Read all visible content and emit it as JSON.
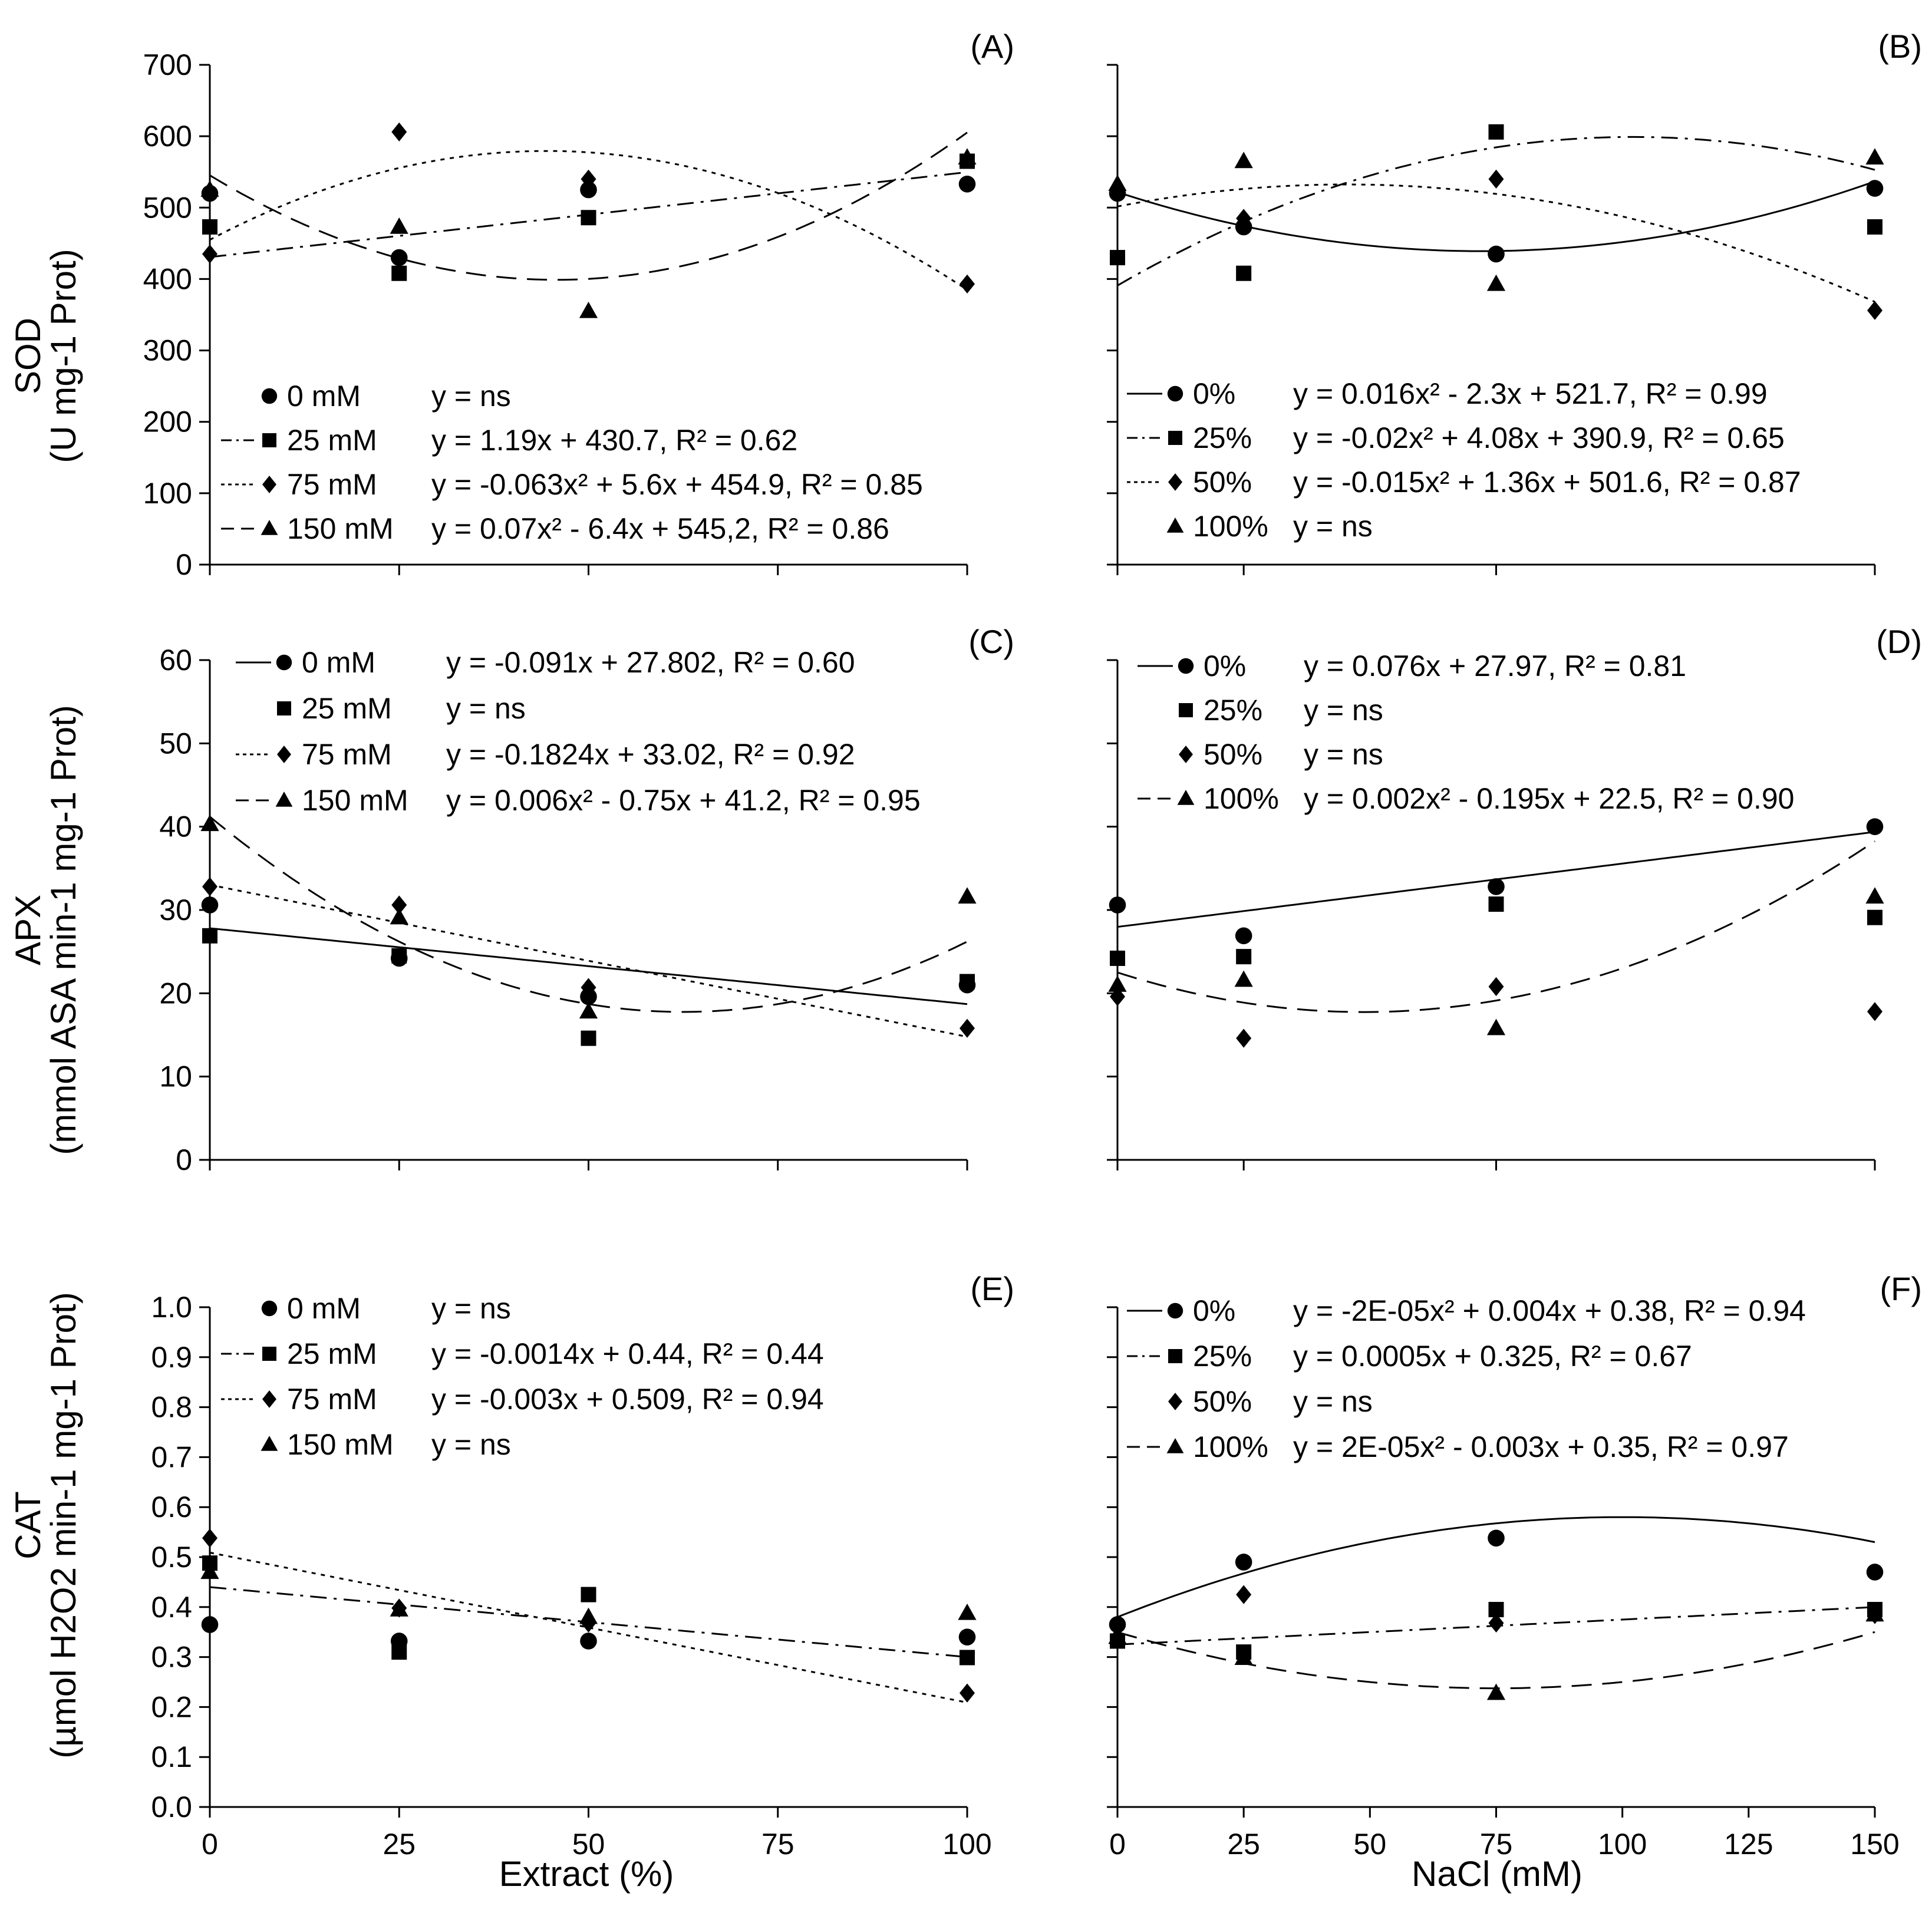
{
  "figure": {
    "xlabel_left": "Extract (%)",
    "xlabel_right": "NaCl (mM)",
    "ylabels": [
      {
        "main": "SOD",
        "sub": "(U mg-1 Prot)"
      },
      {
        "main": "APX",
        "sub": "(mmol ASA  min-1 mg-1 Prot)"
      },
      {
        "main": "CAT",
        "sub": "(µmol H2O2  min-1 mg-1 Prot)"
      }
    ]
  },
  "chart_data": [
    {
      "id": "A",
      "title": "(A)",
      "type": "scatter",
      "xlim": [
        0,
        100
      ],
      "xticks": [
        0,
        25,
        50,
        75,
        100
      ],
      "xlabels": [
        "0",
        "25",
        "50",
        "75",
        "100"
      ],
      "ylim": [
        0,
        700
      ],
      "yticks": [
        0,
        100,
        200,
        300,
        400,
        500,
        600,
        700
      ],
      "ylabels": [
        "0",
        "100",
        "200",
        "300",
        "400",
        "500",
        "600",
        "700"
      ],
      "show_xlabels": false,
      "show_ylabels": true,
      "series": [
        {
          "name": "0 mM",
          "marker": "circle",
          "x": [
            0,
            25,
            50,
            100
          ],
          "y": [
            520,
            430,
            525,
            533
          ],
          "fit": null,
          "legend": {
            "label": "0 mM",
            "eq": "y = ns"
          }
        },
        {
          "name": "25 mM",
          "marker": "square",
          "x": [
            0,
            25,
            50,
            100
          ],
          "y": [
            473,
            408,
            486,
            565
          ],
          "fit": {
            "coef": [
              430.7,
              1.19
            ],
            "dash": "dashdot"
          },
          "legend": {
            "label": "25 mM",
            "eq": "y = 1.19x + 430.7, R² = 0.62"
          }
        },
        {
          "name": "75 mM",
          "marker": "diamond",
          "x": [
            0,
            25,
            50,
            100
          ],
          "y": [
            435,
            606,
            540,
            393
          ],
          "fit": {
            "coef": [
              454.9,
              5.6,
              -0.063
            ],
            "dash": "dot"
          },
          "legend": {
            "label": "75 mM",
            "eq": "y = -0.063x² + 5.6x + 454.9, R² = 0.85"
          }
        },
        {
          "name": "150 mM",
          "marker": "triangle",
          "x": [
            0,
            25,
            50,
            100
          ],
          "y": [
            525,
            473,
            355,
            570
          ],
          "fit": {
            "coef": [
              545.2,
              -6.4,
              0.07
            ],
            "dash": "dash"
          },
          "legend": {
            "label": "150 mM",
            "eq": "y = 0.07x² - 6.4x + 545,2, R² = 0.86"
          }
        }
      ]
    },
    {
      "id": "B",
      "title": "(B)",
      "type": "scatter",
      "xlim": [
        0,
        150
      ],
      "xticks": [
        0,
        25,
        75,
        150
      ],
      "xlabels": [
        "0",
        "25",
        "75",
        "150"
      ],
      "ylim": [
        0,
        700
      ],
      "yticks": [
        0,
        100,
        200,
        300,
        400,
        500,
        600,
        700
      ],
      "ylabels": [],
      "show_xlabels": false,
      "show_ylabels": false,
      "series": [
        {
          "name": "0%",
          "marker": "circle",
          "x": [
            0,
            25,
            75,
            150
          ],
          "y": [
            520,
            473,
            435,
            527
          ],
          "fit": {
            "coef": [
              521.7,
              -2.3,
              0.016
            ],
            "dash": "solid"
          },
          "legend": {
            "label": "0%",
            "eq": "y = 0.016x² - 2.3x + 521.7, R² = 0.99"
          }
        },
        {
          "name": "25%",
          "marker": "square",
          "x": [
            0,
            25,
            75,
            150
          ],
          "y": [
            430,
            408,
            606,
            473
          ],
          "fit": {
            "coef": [
              390.9,
              4.08,
              -0.02
            ],
            "dash": "dashdot"
          },
          "legend": {
            "label": "25%",
            "eq": "y = -0.02x² + 4.08x + 390.9, R² = 0.65"
          }
        },
        {
          "name": "50%",
          "marker": "diamond",
          "x": [
            0,
            25,
            75,
            150
          ],
          "y": [
            525,
            485,
            540,
            356
          ],
          "fit": {
            "coef": [
              501.6,
              1.36,
              -0.015
            ],
            "dash": "dot"
          },
          "legend": {
            "label": "50%",
            "eq": "y = -0.015x² + 1.36x + 501.6, R² = 0.87"
          }
        },
        {
          "name": "100%",
          "marker": "triangle",
          "x": [
            0,
            25,
            75,
            150
          ],
          "y": [
            533,
            565,
            393,
            570
          ],
          "fit": null,
          "legend": {
            "label": "100%",
            "eq": "y = ns"
          }
        }
      ]
    },
    {
      "id": "C",
      "title": "(C)",
      "type": "scatter",
      "xlim": [
        0,
        100
      ],
      "xticks": [
        0,
        25,
        50,
        75,
        100
      ],
      "xlabels": [
        "0",
        "25",
        "50",
        "75",
        "100"
      ],
      "ylim": [
        0,
        60
      ],
      "yticks": [
        0,
        10,
        20,
        30,
        40,
        50,
        60
      ],
      "ylabels": [
        "0",
        "10",
        "20",
        "30",
        "40",
        "50",
        "60"
      ],
      "show_xlabels": false,
      "show_ylabels": true,
      "series": [
        {
          "name": "0 mM",
          "marker": "circle",
          "x": [
            0,
            25,
            50,
            100
          ],
          "y": [
            30.6,
            24.2,
            19.6,
            21.0
          ],
          "fit": {
            "coef": [
              27.802,
              -0.091
            ],
            "dash": "solid"
          },
          "legend": {
            "label": "0 mM",
            "eq": "y = -0.091x + 27.802, R² = 0.60"
          }
        },
        {
          "name": "25 mM",
          "marker": "square",
          "x": [
            0,
            25,
            50,
            100
          ],
          "y": [
            26.9,
            24.5,
            14.6,
            21.4
          ],
          "fit": null,
          "legend": {
            "label": "25 mM",
            "eq": "y = ns"
          }
        },
        {
          "name": "75 mM",
          "marker": "diamond",
          "x": [
            0,
            25,
            50,
            100
          ],
          "y": [
            32.8,
            30.6,
            20.7,
            15.8
          ],
          "fit": {
            "coef": [
              33.02,
              -0.1824
            ],
            "dash": "dot"
          },
          "legend": {
            "label": "75 mM",
            "eq": "y = -0.1824x + 33.02, R² = 0.92"
          }
        },
        {
          "name": "150 mM",
          "marker": "triangle",
          "x": [
            0,
            25,
            50,
            100
          ],
          "y": [
            40.3,
            29.1,
            17.8,
            31.6
          ],
          "fit": {
            "coef": [
              41.2,
              -0.75,
              0.006
            ],
            "dash": "dash"
          },
          "legend": {
            "label": "150 mM",
            "eq": "y = 0.006x² - 0.75x + 41.2, R² = 0.95"
          }
        }
      ]
    },
    {
      "id": "D",
      "title": "(D)",
      "type": "scatter",
      "xlim": [
        0,
        150
      ],
      "xticks": [
        0,
        25,
        75,
        150
      ],
      "xlabels": [
        "0",
        "25",
        "75",
        "150"
      ],
      "ylim": [
        0,
        60
      ],
      "yticks": [
        0,
        10,
        20,
        30,
        40,
        50,
        60
      ],
      "ylabels": [],
      "show_xlabels": false,
      "show_ylabels": false,
      "series": [
        {
          "name": "0%",
          "marker": "circle",
          "x": [
            0,
            25,
            75,
            150
          ],
          "y": [
            30.6,
            26.9,
            32.8,
            40.0
          ],
          "fit": {
            "coef": [
              27.97,
              0.076
            ],
            "dash": "solid"
          },
          "legend": {
            "label": "0%",
            "eq": "y = 0.076x + 27.97, R² = 0.81"
          }
        },
        {
          "name": "25%",
          "marker": "square",
          "x": [
            0,
            25,
            75,
            150
          ],
          "y": [
            24.2,
            24.4,
            30.7,
            29.1
          ],
          "fit": null,
          "legend": {
            "label": "25%",
            "eq": "y = ns"
          }
        },
        {
          "name": "50%",
          "marker": "diamond",
          "x": [
            0,
            25,
            75,
            150
          ],
          "y": [
            19.6,
            14.6,
            20.8,
            17.8
          ],
          "fit": null,
          "legend": {
            "label": "50%",
            "eq": "y = ns"
          }
        },
        {
          "name": "100%",
          "marker": "triangle",
          "x": [
            0,
            25,
            75,
            150
          ],
          "y": [
            21.0,
            21.6,
            15.8,
            31.6
          ],
          "fit": {
            "coef": [
              22.5,
              -0.195,
              0.002
            ],
            "dash": "dash"
          },
          "legend": {
            "label": "100%",
            "eq": "y = 0.002x² - 0.195x + 22.5, R² = 0.90"
          }
        }
      ]
    },
    {
      "id": "E",
      "title": "(E)",
      "type": "scatter",
      "xlim": [
        0,
        100
      ],
      "xticks": [
        0,
        25,
        50,
        75,
        100
      ],
      "xlabels": [
        "0",
        "25",
        "50",
        "75",
        "100"
      ],
      "ylim": [
        0,
        1.0
      ],
      "yticks": [
        0,
        0.1,
        0.2,
        0.3,
        0.4,
        0.5,
        0.6,
        0.7,
        0.8,
        0.9,
        1.0
      ],
      "ylabels": [
        "0.0",
        "0.1",
        "0.2",
        "0.3",
        "0.4",
        "0.5",
        "0.6",
        "0.7",
        "0.8",
        "0.9",
        "1.0"
      ],
      "show_xlabels": true,
      "show_ylabels": true,
      "series": [
        {
          "name": "0 mM",
          "marker": "circle",
          "x": [
            0,
            25,
            50,
            100
          ],
          "y": [
            0.365,
            0.332,
            0.332,
            0.34
          ],
          "fit": null,
          "legend": {
            "label": "0 mM",
            "eq": "y = ns"
          }
        },
        {
          "name": "25 mM",
          "marker": "square",
          "x": [
            0,
            25,
            50,
            100
          ],
          "y": [
            0.488,
            0.31,
            0.425,
            0.299
          ],
          "fit": {
            "coef": [
              0.44,
              -0.0014
            ],
            "dash": "dashdot"
          },
          "legend": {
            "label": "25 mM",
            "eq": "y = -0.0014x + 0.44, R² = 0.44"
          }
        },
        {
          "name": "75 mM",
          "marker": "diamond",
          "x": [
            0,
            25,
            50,
            100
          ],
          "y": [
            0.538,
            0.398,
            0.368,
            0.228
          ],
          "fit": {
            "coef": [
              0.509,
              -0.003
            ],
            "dash": "dot"
          },
          "legend": {
            "label": "75 mM",
            "eq": "y = -0.003x + 0.509, R² = 0.94"
          }
        },
        {
          "name": "150 mM",
          "marker": "triangle",
          "x": [
            0,
            25,
            50,
            100
          ],
          "y": [
            0.47,
            0.395,
            0.38,
            0.388
          ],
          "fit": null,
          "legend": {
            "label": "150 mM",
            "eq": "y = ns"
          }
        }
      ]
    },
    {
      "id": "F",
      "title": "(F)",
      "type": "scatter",
      "xlim": [
        0,
        150
      ],
      "xticks": [
        0,
        25,
        50,
        75,
        100,
        125,
        150
      ],
      "xlabels": [
        "0",
        "25",
        "50",
        "75",
        "100",
        "125",
        "150"
      ],
      "ylim": [
        0,
        1.0
      ],
      "yticks": [
        0,
        0.1,
        0.2,
        0.3,
        0.4,
        0.5,
        0.6,
        0.7,
        0.8,
        0.9,
        1.0
      ],
      "ylabels": [],
      "show_xlabels": true,
      "show_ylabels": false,
      "series": [
        {
          "name": "0%",
          "marker": "circle",
          "x": [
            0,
            25,
            75,
            150
          ],
          "y": [
            0.365,
            0.49,
            0.538,
            0.47
          ],
          "fit": {
            "coef": [
              0.38,
              0.004,
              -2e-05
            ],
            "dash": "solid"
          },
          "legend": {
            "label": "0%",
            "eq": "y = -2E-05x² + 0.004x + 0.38, R² = 0.94"
          }
        },
        {
          "name": "25%",
          "marker": "square",
          "x": [
            0,
            25,
            75,
            150
          ],
          "y": [
            0.332,
            0.31,
            0.395,
            0.395
          ],
          "fit": {
            "coef": [
              0.325,
              0.0005
            ],
            "dash": "dashdot"
          },
          "legend": {
            "label": "25%",
            "eq": "y = 0.0005x + 0.325, R² = 0.67"
          }
        },
        {
          "name": "50%",
          "marker": "diamond",
          "x": [
            0,
            25,
            75,
            150
          ],
          "y": [
            0.34,
            0.425,
            0.368,
            0.385
          ],
          "fit": null,
          "legend": {
            "label": "50%",
            "eq": "y = ns"
          }
        },
        {
          "name": "100%",
          "marker": "triangle",
          "x": [
            0,
            25,
            75,
            150
          ],
          "y": [
            0.34,
            0.298,
            0.228,
            0.385
          ],
          "fit": {
            "coef": [
              0.35,
              -0.003,
              2e-05
            ],
            "dash": "dash"
          },
          "legend": {
            "label": "100%",
            "eq": "y = 2E-05x² - 0.003x + 0.35, R² = 0.97"
          }
        }
      ]
    }
  ]
}
